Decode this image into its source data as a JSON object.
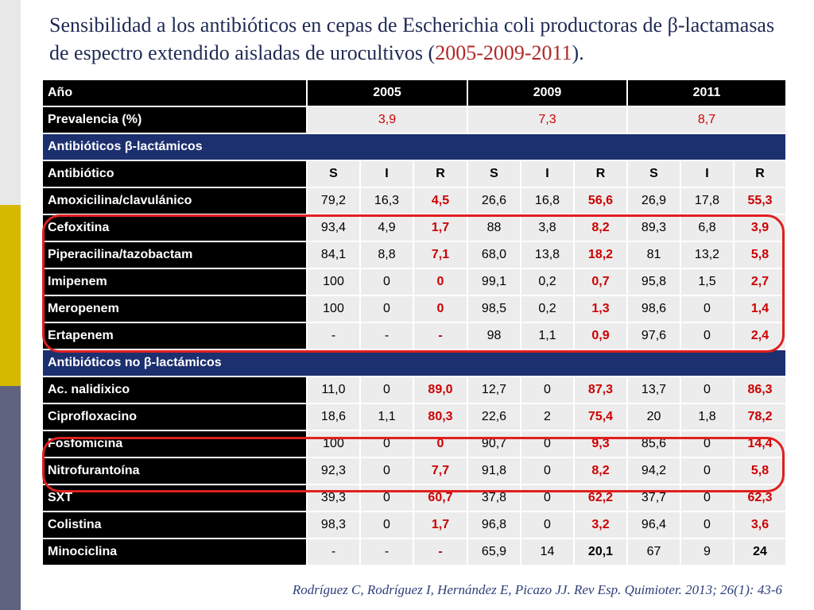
{
  "slide": {
    "title": "Sensibilidad a los antibióticos en cepas de Escherichia coli productoras de  β-lactamasas de espectro extendido aisladas de urocultivos (",
    "title_years": "2005-2009-2011",
    "title_end": ").",
    "citation": "Rodríguez C, Rodríguez  I, Hernández E, Picazo JJ. Rev Esp. Quimioter. 2013; 26(1): 43-6"
  },
  "table": {
    "year_header": {
      "label": "Año",
      "years": [
        "2005",
        "2009",
        "2011"
      ]
    },
    "prevalence": {
      "label": "Prevalencia (%)",
      "values": [
        "3,9",
        "7,3",
        "8,7"
      ]
    },
    "section_beta": "Antibióticos β-lactámicos",
    "sir_header": {
      "label": "Antibiótico",
      "cols": [
        "S",
        "I",
        "R",
        "S",
        "I",
        "R",
        "S",
        "I",
        "R"
      ]
    },
    "beta_rows": [
      {
        "name": "Amoxicilina/clavulánico",
        "values": [
          "79,2",
          "16,3",
          "4,5",
          "26,6",
          "16,8",
          "56,6",
          "26,9",
          "17,8",
          "55,3"
        ]
      },
      {
        "name": "Cefoxitina",
        "values": [
          "93,4",
          "4,9",
          "1,7",
          "88",
          "3,8",
          "8,2",
          "89,3",
          "6,8",
          "3,9"
        ]
      },
      {
        "name": "Piperacilina/tazobactam",
        "values": [
          "84,1",
          "8,8",
          "7,1",
          "68,0",
          "13,8",
          "18,2",
          "81",
          "13,2",
          "5,8"
        ]
      },
      {
        "name": "Imipenem",
        "values": [
          "100",
          "0",
          "0",
          "99,1",
          "0,2",
          "0,7",
          "95,8",
          "1,5",
          "2,7"
        ]
      },
      {
        "name": "Meropenem",
        "values": [
          "100",
          "0",
          "0",
          "98,5",
          "0,2",
          "1,3",
          "98,6",
          "0",
          "1,4"
        ]
      },
      {
        "name": "Ertapenem",
        "values": [
          "-",
          "-",
          "-",
          "98",
          "1,1",
          "0,9",
          "97,6",
          "0",
          "2,4"
        ]
      }
    ],
    "section_non_beta": "Antibióticos no β-lactámicos",
    "non_beta_rows": [
      {
        "name": "Ac. nalidixico",
        "values": [
          "11,0",
          "0",
          "89,0",
          "12,7",
          "0",
          "87,3",
          "13,7",
          "0",
          "86,3"
        ]
      },
      {
        "name": "Ciprofloxacino",
        "values": [
          "18,6",
          "1,1",
          "80,3",
          "22,6",
          "2",
          "75,4",
          "20",
          "1,8",
          "78,2"
        ]
      },
      {
        "name": "Fosfomicina",
        "values": [
          "100",
          "0",
          "0",
          "90,7",
          "0",
          "9,3",
          "85,6",
          "0",
          "14,4"
        ]
      },
      {
        "name": "Nitrofurantoína",
        "values": [
          "92,3",
          "0",
          "7,7",
          "91,8",
          "0",
          "8,2",
          "94,2",
          "0",
          "5,8"
        ]
      },
      {
        "name": "SXT",
        "values": [
          "39,3",
          "0",
          "60,7",
          "37,8",
          "0",
          "62,2",
          "37,7",
          "0",
          "62,3"
        ]
      },
      {
        "name": "Colistina",
        "values": [
          "98,3",
          "0",
          "1,7",
          "96,8",
          "0",
          "3,2",
          "96,4",
          "0",
          "3,6"
        ]
      },
      {
        "name": "Minociclina",
        "values": [
          "-",
          "-",
          "-",
          "65,9",
          "14",
          "20,1",
          "67",
          "9",
          "24"
        ]
      }
    ]
  },
  "colors": {
    "resistance_red": "#cc0000",
    "section_blue": "#1c2f6e",
    "highlight_oval": "#e01f1f",
    "title_navy": "#1f2a55"
  }
}
